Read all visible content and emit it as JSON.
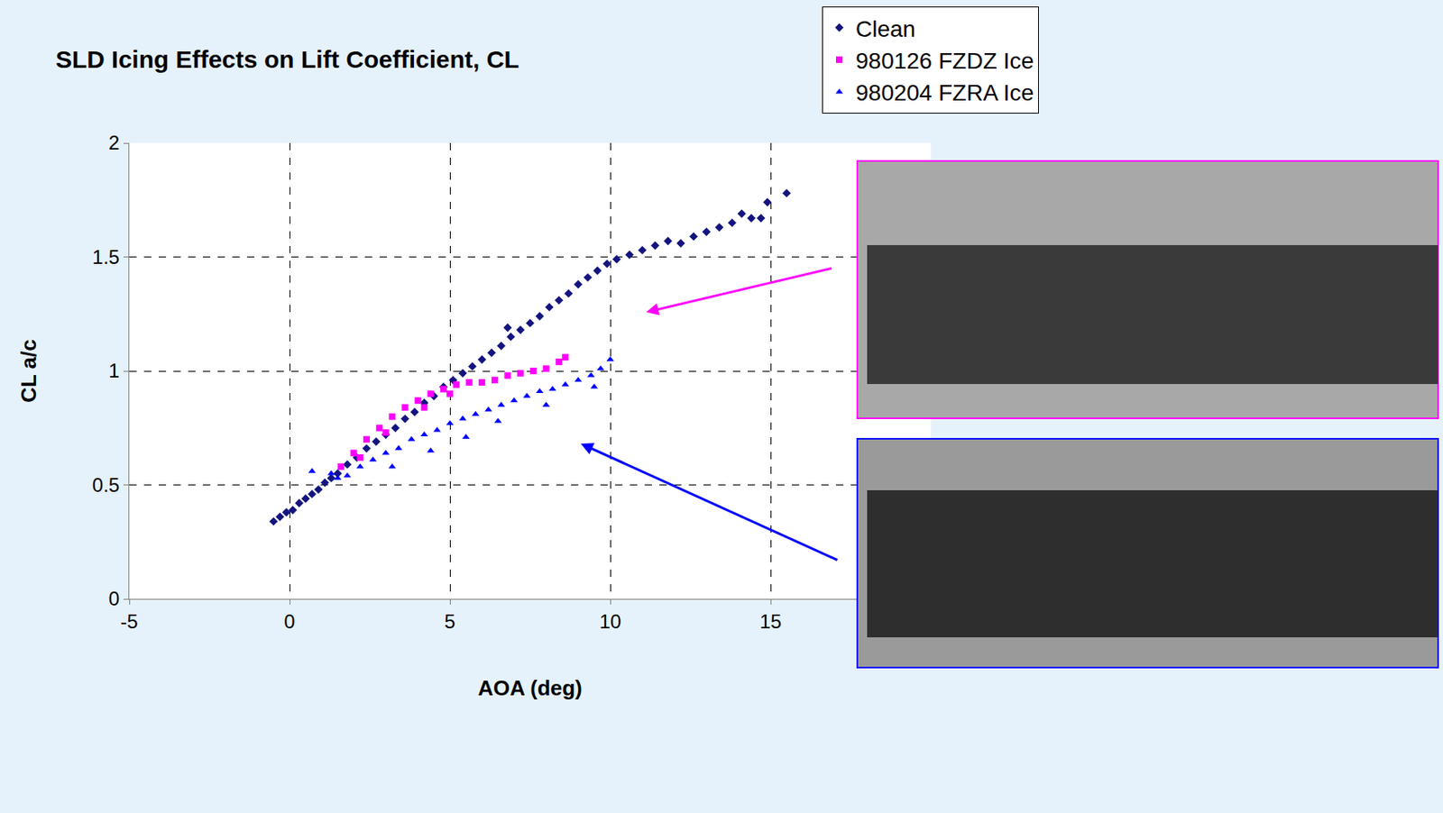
{
  "chart_data": {
    "type": "scatter",
    "title": "SLD Icing Effects on Lift Coefficient, CL",
    "x_label": "AOA (deg)",
    "y_label": "CL a/c",
    "xlim": [
      -5,
      20
    ],
    "ylim": [
      0,
      2
    ],
    "xticks": [
      -5,
      0,
      5,
      10,
      15
    ],
    "yticks": [
      0,
      0.5,
      1,
      1.5,
      2
    ],
    "grid": true,
    "legend": "top right",
    "series": [
      {
        "name": "Clean",
        "color": "#14147F",
        "marker": "diamond",
        "x": [
          -0.5,
          -0.3,
          -0.1,
          0.1,
          0.3,
          0.5,
          0.7,
          0.9,
          1.1,
          1.3,
          1.5,
          1.8,
          2.1,
          2.4,
          2.7,
          3.0,
          3.3,
          3.6,
          3.9,
          4.2,
          4.5,
          4.8,
          5.1,
          5.4,
          5.7,
          6.0,
          6.3,
          6.6,
          6.8,
          6.9,
          7.2,
          7.5,
          7.8,
          8.1,
          8.4,
          8.7,
          9.0,
          9.3,
          9.6,
          9.9,
          10.2,
          10.6,
          11.0,
          11.4,
          11.8,
          12.2,
          12.6,
          13.0,
          13.4,
          13.8,
          14.1,
          14.4,
          14.7,
          14.9,
          15.5
        ],
        "values": [
          0.34,
          0.36,
          0.38,
          0.39,
          0.42,
          0.44,
          0.46,
          0.48,
          0.51,
          0.53,
          0.55,
          0.59,
          0.62,
          0.66,
          0.69,
          0.72,
          0.75,
          0.79,
          0.82,
          0.86,
          0.89,
          0.93,
          0.96,
          0.99,
          1.02,
          1.05,
          1.08,
          1.11,
          1.19,
          1.15,
          1.18,
          1.21,
          1.24,
          1.28,
          1.31,
          1.34,
          1.38,
          1.41,
          1.44,
          1.47,
          1.49,
          1.51,
          1.53,
          1.55,
          1.57,
          1.56,
          1.59,
          1.61,
          1.63,
          1.65,
          1.69,
          1.67,
          1.67,
          1.74,
          1.78
        ]
      },
      {
        "name": "980126 FZDZ Ice",
        "color": "#FF00FF",
        "marker": "square",
        "x": [
          1.6,
          2.0,
          2.2,
          2.4,
          2.8,
          3.0,
          3.2,
          3.6,
          4.0,
          4.2,
          4.4,
          4.8,
          5.0,
          5.2,
          5.6,
          6.0,
          6.4,
          6.8,
          7.2,
          7.6,
          8.0,
          8.4,
          8.6
        ],
        "values": [
          0.58,
          0.64,
          0.62,
          0.7,
          0.75,
          0.73,
          0.8,
          0.84,
          0.87,
          0.84,
          0.9,
          0.92,
          0.9,
          0.94,
          0.95,
          0.95,
          0.96,
          0.98,
          0.99,
          1.0,
          1.01,
          1.04,
          1.06
        ]
      },
      {
        "name": "980204 FZRA Ice",
        "color": "#0000FF",
        "marker": "triangle",
        "x": [
          0.7,
          1.3,
          1.5,
          1.8,
          2.2,
          2.6,
          3.0,
          3.2,
          3.4,
          3.8,
          4.2,
          4.4,
          4.6,
          5.0,
          5.4,
          5.5,
          5.8,
          6.2,
          6.5,
          6.6,
          7.0,
          7.4,
          7.8,
          8.0,
          8.2,
          8.6,
          9.0,
          9.4,
          9.5,
          9.7,
          10.0
        ],
        "values": [
          0.56,
          0.55,
          0.53,
          0.54,
          0.58,
          0.61,
          0.64,
          0.58,
          0.66,
          0.7,
          0.72,
          0.65,
          0.74,
          0.77,
          0.79,
          0.71,
          0.81,
          0.83,
          0.78,
          0.85,
          0.87,
          0.89,
          0.91,
          0.85,
          0.92,
          0.94,
          0.96,
          0.98,
          0.93,
          1.01,
          1.05
        ]
      }
    ]
  }
}
